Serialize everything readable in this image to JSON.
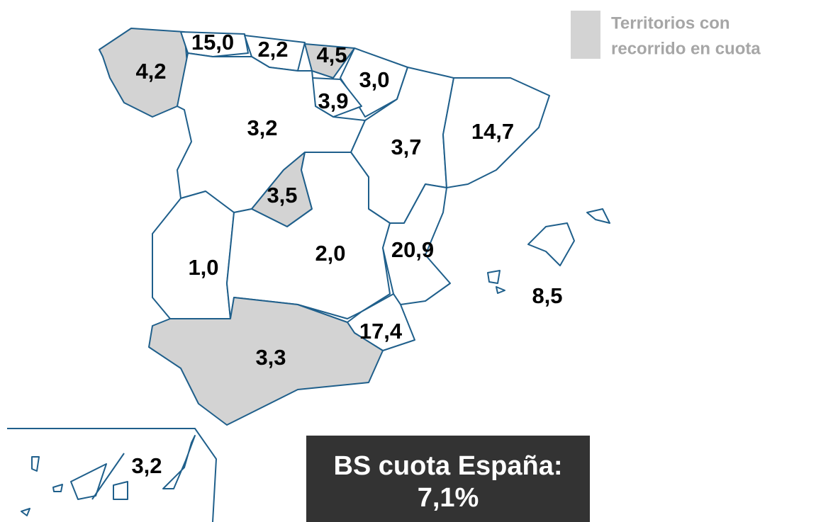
{
  "legend": {
    "lines": [
      "Territorios con",
      "recorrido en cuota"
    ],
    "color": "#d3d3d3"
  },
  "regions": [
    {
      "label": "4,2",
      "highlighted": true
    },
    {
      "label": "15,0",
      "highlighted": false
    },
    {
      "label": "2,2",
      "highlighted": false
    },
    {
      "label": "4,5",
      "highlighted": true
    },
    {
      "label": "3,0",
      "highlighted": false
    },
    {
      "label": "3,9",
      "highlighted": false
    },
    {
      "label": "3,2",
      "highlighted": false
    },
    {
      "label": "3,5",
      "highlighted": true
    },
    {
      "label": "3,7",
      "highlighted": false
    },
    {
      "label": "14,7",
      "highlighted": false
    },
    {
      "label": "1,0",
      "highlighted": false
    },
    {
      "label": "2,0",
      "highlighted": false
    },
    {
      "label": "20,9",
      "highlighted": false
    },
    {
      "label": "17,4",
      "highlighted": false
    },
    {
      "label": "3,3",
      "highlighted": true
    },
    {
      "label": "8,5",
      "highlighted": false
    },
    {
      "label": "3,2",
      "highlighted": false
    }
  ],
  "summary": {
    "lines": [
      "BS cuota España:",
      "7,1%"
    ]
  }
}
